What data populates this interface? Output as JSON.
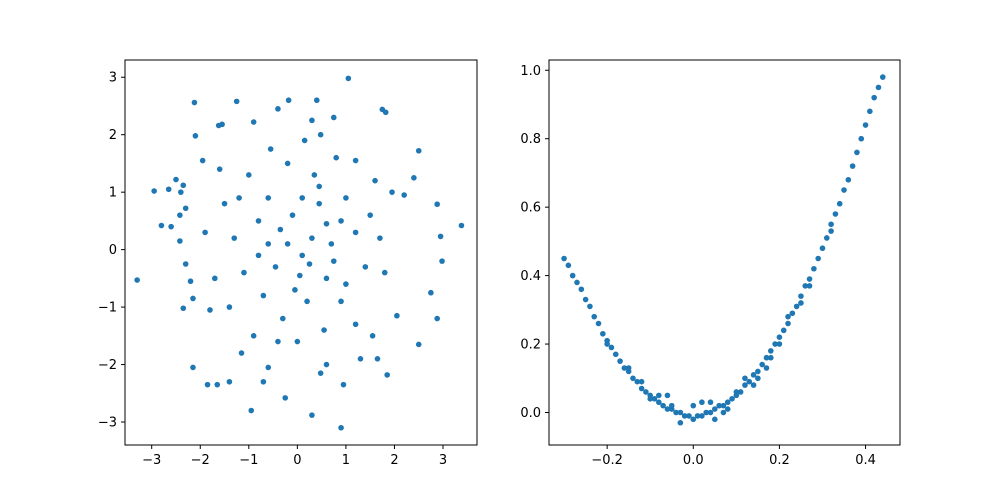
{
  "colors": {
    "marker": "#1f77b4",
    "frame": "#000000",
    "background": "#ffffff"
  },
  "chart_data": [
    {
      "type": "scatter",
      "grid": false,
      "xlim": [
        -3.55,
        3.7
      ],
      "ylim": [
        -3.4,
        3.3
      ],
      "xticks": [
        -3,
        -2,
        -1,
        0,
        1,
        2,
        3
      ],
      "yticks": [
        -3,
        -2,
        -1,
        0,
        1,
        2,
        3
      ],
      "xticklabels": [
        "−3",
        "−2",
        "−1",
        "0",
        "1",
        "2",
        "3"
      ],
      "yticklabels": [
        "−3",
        "−2",
        "−1",
        "0",
        "1",
        "2",
        "3"
      ],
      "points": [
        [
          1.05,
          2.98
        ],
        [
          -2.12,
          2.56
        ],
        [
          -1.25,
          2.58
        ],
        [
          -0.18,
          2.6
        ],
        [
          0.4,
          2.6
        ],
        [
          -0.4,
          2.45
        ],
        [
          1.75,
          2.44
        ],
        [
          1.82,
          2.39
        ],
        [
          0.75,
          2.3
        ],
        [
          0.3,
          2.25
        ],
        [
          -0.9,
          2.22
        ],
        [
          -1.55,
          2.18
        ],
        [
          -1.62,
          2.16
        ],
        [
          0.48,
          2.0
        ],
        [
          -2.1,
          1.98
        ],
        [
          2.5,
          1.72
        ],
        [
          -1.95,
          1.55
        ],
        [
          -2.5,
          1.22
        ],
        [
          -2.35,
          1.12
        ],
        [
          -2.95,
          1.02
        ],
        [
          -2.65,
          1.05
        ],
        [
          -2.4,
          1.0
        ],
        [
          1.6,
          1.2
        ],
        [
          1.95,
          1.0
        ],
        [
          2.2,
          0.95
        ],
        [
          2.4,
          1.25
        ],
        [
          2.88,
          0.79
        ],
        [
          3.38,
          0.42
        ],
        [
          2.95,
          0.23
        ],
        [
          2.98,
          -0.2
        ],
        [
          2.75,
          -0.75
        ],
        [
          2.88,
          -1.2
        ],
        [
          2.5,
          -1.65
        ],
        [
          2.05,
          -1.15
        ],
        [
          1.85,
          -2.18
        ],
        [
          -2.8,
          0.42
        ],
        [
          -2.6,
          0.4
        ],
        [
          -2.42,
          0.6
        ],
        [
          -2.3,
          0.72
        ],
        [
          -2.42,
          0.15
        ],
        [
          -3.3,
          -0.53
        ],
        [
          -2.3,
          -0.25
        ],
        [
          -2.2,
          -0.55
        ],
        [
          -2.15,
          -0.85
        ],
        [
          -2.35,
          -1.02
        ],
        [
          -1.8,
          -1.05
        ],
        [
          -2.15,
          -2.05
        ],
        [
          -1.85,
          -2.35
        ],
        [
          -1.65,
          -2.35
        ],
        [
          -1.4,
          -2.3
        ],
        [
          -1.15,
          -1.8
        ],
        [
          -0.95,
          -2.8
        ],
        [
          -0.7,
          -2.3
        ],
        [
          -0.6,
          -2.05
        ],
        [
          -0.25,
          -2.58
        ],
        [
          0.3,
          -2.88
        ],
        [
          0.6,
          -2.0
        ],
        [
          0.9,
          -3.1
        ],
        [
          0.48,
          -2.15
        ],
        [
          0.95,
          -2.35
        ],
        [
          1.3,
          -1.9
        ],
        [
          1.65,
          -1.9
        ],
        [
          1.55,
          -1.5
        ],
        [
          -0.2,
          0.1
        ],
        [
          0.1,
          -0.1
        ],
        [
          0.3,
          0.2
        ],
        [
          -0.45,
          -0.3
        ],
        [
          0.6,
          -0.5
        ],
        [
          -0.8,
          0.5
        ],
        [
          0.45,
          0.8
        ],
        [
          -0.6,
          0.9
        ],
        [
          1.2,
          0.3
        ],
        [
          -1.1,
          -0.4
        ],
        [
          0.2,
          -0.9
        ],
        [
          -0.3,
          -1.2
        ],
        [
          0.9,
          -0.9
        ],
        [
          1.0,
          0.9
        ],
        [
          -1.3,
          0.2
        ],
        [
          0.7,
          0.1
        ],
        [
          -0.1,
          0.6
        ],
        [
          0.05,
          -0.45
        ],
        [
          -0.7,
          -0.8
        ],
        [
          1.4,
          -0.3
        ],
        [
          -1.5,
          0.8
        ],
        [
          0.35,
          1.3
        ],
        [
          -0.2,
          1.5
        ],
        [
          0.8,
          1.6
        ],
        [
          -1.0,
          1.3
        ],
        [
          1.5,
          0.6
        ],
        [
          -1.7,
          -0.5
        ],
        [
          -1.4,
          -1.0
        ],
        [
          0.0,
          -1.6
        ],
        [
          0.55,
          -1.4
        ],
        [
          -0.9,
          -1.5
        ],
        [
          1.2,
          -1.3
        ],
        [
          1.8,
          -0.4
        ],
        [
          1.7,
          0.2
        ],
        [
          -1.9,
          0.3
        ],
        [
          -1.6,
          1.4
        ],
        [
          0.15,
          1.9
        ],
        [
          -0.55,
          1.75
        ],
        [
          1.2,
          1.55
        ],
        [
          0.6,
          0.45
        ],
        [
          -0.35,
          0.35
        ],
        [
          0.25,
          -0.25
        ],
        [
          -0.05,
          -0.7
        ],
        [
          0.75,
          -0.2
        ],
        [
          -0.8,
          -0.1
        ],
        [
          1.0,
          -0.6
        ],
        [
          -1.2,
          0.9
        ],
        [
          0.45,
          1.1
        ],
        [
          -0.4,
          -1.6
        ],
        [
          0.1,
          0.9
        ],
        [
          -0.6,
          0.1
        ],
        [
          0.9,
          0.5
        ]
      ]
    },
    {
      "type": "scatter",
      "grid": false,
      "xlim": [
        -0.335,
        0.48
      ],
      "ylim": [
        -0.095,
        1.03
      ],
      "xticks": [
        -0.2,
        0.0,
        0.2,
        0.4
      ],
      "yticks": [
        0.0,
        0.2,
        0.4,
        0.6,
        0.8,
        1.0
      ],
      "xticklabels": [
        "−0.2",
        "0.0",
        "0.2",
        "0.4"
      ],
      "yticklabels": [
        "0.0",
        "0.2",
        "0.4",
        "0.6",
        "0.8",
        "1.0"
      ],
      "points": [
        [
          -0.3,
          0.45
        ],
        [
          -0.29,
          0.43
        ],
        [
          -0.28,
          0.4
        ],
        [
          -0.27,
          0.38
        ],
        [
          -0.26,
          0.36
        ],
        [
          -0.25,
          0.33
        ],
        [
          -0.24,
          0.31
        ],
        [
          -0.23,
          0.28
        ],
        [
          -0.22,
          0.26
        ],
        [
          -0.21,
          0.23
        ],
        [
          -0.2,
          0.21
        ],
        [
          -0.19,
          0.19
        ],
        [
          -0.18,
          0.17
        ],
        [
          -0.17,
          0.15
        ],
        [
          -0.16,
          0.13
        ],
        [
          -0.15,
          0.12
        ],
        [
          -0.14,
          0.1
        ],
        [
          -0.13,
          0.09
        ],
        [
          -0.12,
          0.07
        ],
        [
          -0.11,
          0.06
        ],
        [
          -0.1,
          0.05
        ],
        [
          -0.09,
          0.04
        ],
        [
          -0.08,
          0.03
        ],
        [
          -0.07,
          0.02
        ],
        [
          -0.06,
          0.01
        ],
        [
          -0.05,
          0.01
        ],
        [
          -0.04,
          0.0
        ],
        [
          -0.03,
          0.0
        ],
        [
          -0.02,
          -0.01
        ],
        [
          -0.01,
          -0.01
        ],
        [
          0.0,
          -0.02
        ],
        [
          0.01,
          -0.01
        ],
        [
          0.02,
          -0.01
        ],
        [
          0.03,
          0.0
        ],
        [
          0.04,
          0.0
        ],
        [
          0.05,
          0.01
        ],
        [
          0.06,
          0.02
        ],
        [
          0.07,
          0.02
        ],
        [
          0.08,
          0.03
        ],
        [
          0.09,
          0.04
        ],
        [
          0.1,
          0.05
        ],
        [
          0.11,
          0.06
        ],
        [
          0.12,
          0.08
        ],
        [
          0.13,
          0.09
        ],
        [
          0.14,
          0.11
        ],
        [
          0.15,
          0.12
        ],
        [
          0.16,
          0.14
        ],
        [
          0.17,
          0.16
        ],
        [
          0.18,
          0.18
        ],
        [
          0.19,
          0.2
        ],
        [
          0.2,
          0.22
        ],
        [
          0.21,
          0.24
        ],
        [
          0.22,
          0.26
        ],
        [
          0.23,
          0.29
        ],
        [
          0.24,
          0.31
        ],
        [
          0.25,
          0.34
        ],
        [
          0.26,
          0.37
        ],
        [
          0.27,
          0.39
        ],
        [
          0.28,
          0.42
        ],
        [
          0.29,
          0.45
        ],
        [
          0.3,
          0.48
        ],
        [
          0.31,
          0.51
        ],
        [
          0.32,
          0.55
        ],
        [
          0.33,
          0.58
        ],
        [
          0.34,
          0.61
        ],
        [
          0.35,
          0.65
        ],
        [
          0.36,
          0.68
        ],
        [
          0.37,
          0.72
        ],
        [
          0.38,
          0.76
        ],
        [
          0.39,
          0.8
        ],
        [
          0.4,
          0.84
        ],
        [
          0.41,
          0.88
        ],
        [
          0.42,
          0.92
        ],
        [
          0.43,
          0.95
        ],
        [
          0.44,
          0.98
        ],
        [
          -0.2,
          0.2
        ],
        [
          -0.15,
          0.13
        ],
        [
          -0.1,
          0.04
        ],
        [
          -0.05,
          0.02
        ],
        [
          0.0,
          0.02
        ],
        [
          0.05,
          -0.02
        ],
        [
          0.1,
          0.06
        ],
        [
          0.15,
          0.1
        ],
        [
          0.2,
          0.2
        ],
        [
          0.25,
          0.32
        ],
        [
          -0.12,
          0.09
        ],
        [
          -0.08,
          0.05
        ],
        [
          -0.03,
          -0.03
        ],
        [
          0.02,
          0.03
        ],
        [
          0.07,
          0.0
        ],
        [
          0.12,
          0.1
        ],
        [
          0.17,
          0.13
        ],
        [
          0.22,
          0.28
        ],
        [
          0.27,
          0.37
        ],
        [
          0.32,
          0.53
        ],
        [
          -0.06,
          0.05
        ],
        [
          0.04,
          0.03
        ],
        [
          0.08,
          0.01
        ],
        [
          0.14,
          0.08
        ],
        [
          0.18,
          0.16
        ]
      ]
    }
  ]
}
